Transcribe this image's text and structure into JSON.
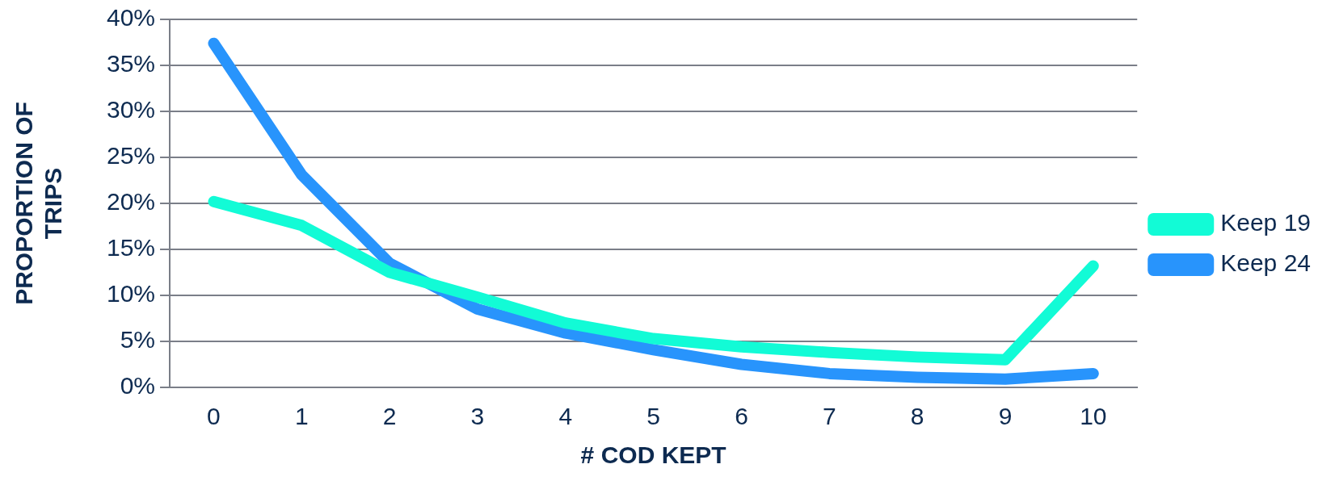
{
  "chart_data": {
    "type": "line",
    "xlabel": "# COD KEPT",
    "ylabel": "PROPORTION OF TRIPS",
    "categories": [
      "0",
      "1",
      "2",
      "3",
      "4",
      "5",
      "6",
      "7",
      "8",
      "9",
      "10"
    ],
    "series": [
      {
        "name": "Keep 19",
        "color": "#12fbd6",
        "values": [
          20.2,
          17.6,
          12.5,
          9.8,
          7.0,
          5.3,
          4.4,
          3.8,
          3.3,
          3.0,
          13.2
        ]
      },
      {
        "name": "Keep 24",
        "color": "#2894fc",
        "values": [
          37.4,
          23.1,
          13.5,
          8.5,
          5.9,
          4.1,
          2.5,
          1.5,
          1.1,
          0.9,
          1.5
        ]
      }
    ],
    "ylim": [
      0,
      40
    ],
    "yticks": [
      {
        "value": 0,
        "label": "0%"
      },
      {
        "value": 5,
        "label": "5%"
      },
      {
        "value": 10,
        "label": "10%"
      },
      {
        "value": 15,
        "label": "15%"
      },
      {
        "value": 20,
        "label": "20%"
      },
      {
        "value": 25,
        "label": "25%"
      },
      {
        "value": 30,
        "label": "30%"
      },
      {
        "value": 35,
        "label": "35%"
      },
      {
        "value": 40,
        "label": "40%"
      }
    ],
    "grid": "y",
    "legend": "right",
    "marker": "none",
    "line_style": "solid"
  }
}
